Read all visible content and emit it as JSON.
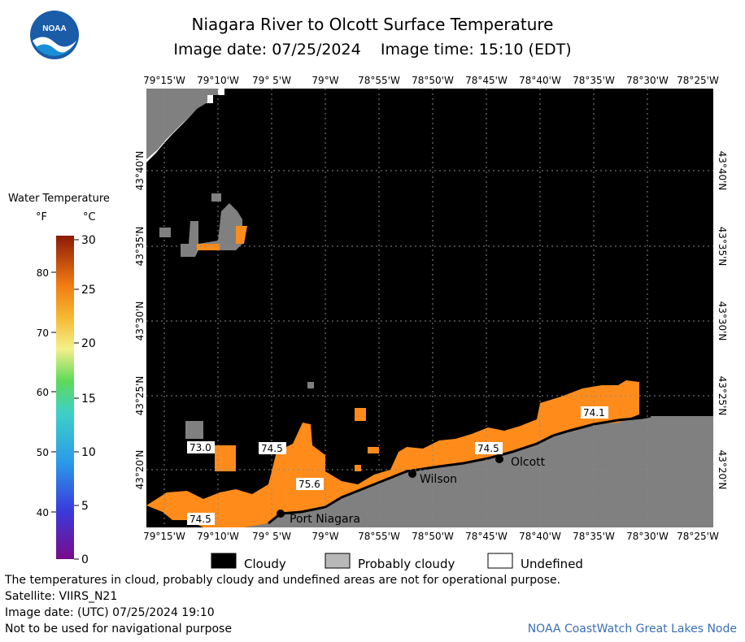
{
  "header": {
    "title": "Niagara River to Olcott Surface Temperature",
    "subtitle": "Image date: 07/25/2024    Image time: 15:10 (EDT)",
    "logo_text": "NOAA"
  },
  "legend": {
    "title": "Water Temperature",
    "unit_f": "°F",
    "unit_c": "°C",
    "f_ticks": [
      "80",
      "70",
      "60",
      "50",
      "40"
    ],
    "c_ticks": [
      "30",
      "25",
      "20",
      "15",
      "10",
      "5",
      "0"
    ]
  },
  "map": {
    "lon_labels": [
      "79°15'W",
      "79°10'W",
      "79° 5'W",
      "79°W",
      "78°55'W",
      "78°50'W",
      "78°45'W",
      "78°40'W",
      "78°35'W",
      "78°30'W",
      "78°25'W"
    ],
    "lat_labels": [
      "43°40'N",
      "43°35'N",
      "43°30'N",
      "43°25'N",
      "43°20'N"
    ],
    "places": [
      "Port Niagara",
      "Wilson",
      "Olcott"
    ],
    "temp_labels": [
      "73.0",
      "74.5",
      "75.6",
      "74.5",
      "74.5",
      "74.1"
    ],
    "colors": {
      "cloudy": "#000000",
      "probably_cloudy": "#808080",
      "undefined": "#ffffff",
      "water": "#ff8c1a"
    }
  },
  "key": {
    "cloudy": "Cloudy",
    "probably_cloudy": "Probably cloudy",
    "undefined": "Undefined"
  },
  "footer": {
    "note1": "The temperatures in cloud, probably cloudy and undefined areas are not for operational purpose.",
    "satellite": "Satellite: VIIRS_N21",
    "utc_date": "Image date: (UTC) 07/25/2024  19:10",
    "nav_note": "Not to be used for navigational purpose",
    "credit": "NOAA CoastWatch Great Lakes Node"
  }
}
